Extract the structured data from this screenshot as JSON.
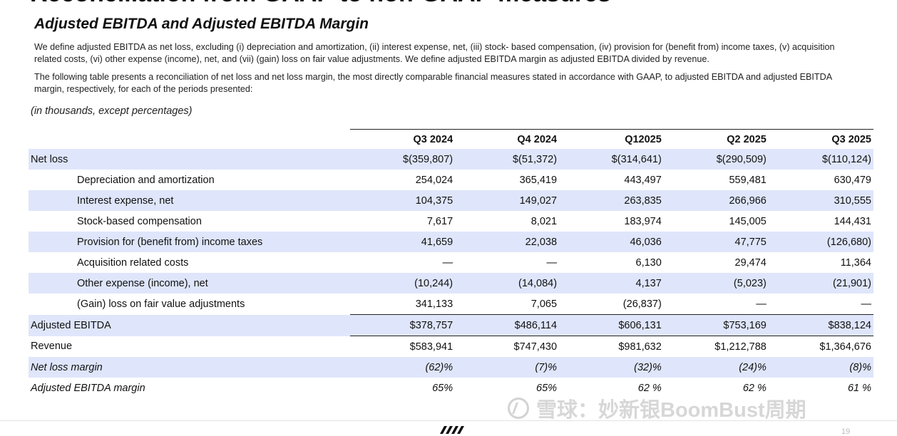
{
  "page": {
    "heading": "Reconciliation from GAAP to non-GAAP measures",
    "section_title": "Adjusted EBITDA and Adjusted EBITDA Margin",
    "paragraph_1": "We define adjusted EBITDA as net loss, excluding (i) depreciation and amortization, (ii) interest expense, net, (iii) stock- based compensation, (iv) provision for (benefit from) income taxes, (v) acquisition related costs, (vi) other expense (income), net, and (vii) (gain) loss on fair value adjustments. We define adjusted EBITDA margin as adjusted EBITDA divided by revenue.",
    "paragraph_2": "The following table presents a reconciliation of net loss and net loss margin, the most directly comparable financial measures stated in accordance with GAAP, to adjusted EBITDA and adjusted EBITDA margin, respectively, for each of the periods presented:",
    "units_note": "(in thousands, except percentages)",
    "page_number": "19"
  },
  "table": {
    "columns": [
      "Q3 2024",
      "Q4 2024",
      "Q12025",
      "Q2 2025",
      "Q3 2025"
    ],
    "rows": [
      {
        "label": "Net loss",
        "values": [
          "$(359,807)",
          "$(51,372)",
          "$(314,641)",
          "$(290,509)",
          "$(110,124)"
        ]
      },
      {
        "label": "Depreciation and amortization",
        "values": [
          "254,024",
          "365,419",
          "443,497",
          "559,481",
          "630,479"
        ]
      },
      {
        "label": "Interest expense, net",
        "values": [
          "104,375",
          "149,027",
          "263,835",
          "266,966",
          "310,555"
        ]
      },
      {
        "label": "Stock-based compensation",
        "values": [
          "7,617",
          "8,021",
          "183,974",
          "145,005",
          "144,431"
        ]
      },
      {
        "label": "Provision for (benefit from) income taxes",
        "values": [
          "41,659",
          "22,038",
          "46,036",
          "47,775",
          "(126,680)"
        ]
      },
      {
        "label": "Acquisition related costs",
        "values": [
          "—",
          "—",
          "6,130",
          "29,474",
          "11,364"
        ]
      },
      {
        "label": "Other expense (income), net",
        "values": [
          "(10,244)",
          "(14,084)",
          "4,137",
          "(5,023)",
          "(21,901)"
        ]
      },
      {
        "label": "(Gain) loss on fair value adjustments",
        "values": [
          "341,133",
          "7,065",
          "(26,837)",
          "—",
          "—"
        ]
      },
      {
        "label": "Adjusted EBITDA",
        "values": [
          "$378,757",
          "$486,114",
          "$606,131",
          "$753,169",
          "$838,124"
        ]
      },
      {
        "label": "Revenue",
        "values": [
          "$583,941",
          "$747,430",
          "$981,632",
          "$1,212,788",
          "$1,364,676"
        ]
      },
      {
        "label": "Net loss margin",
        "values": [
          "(62)%",
          "(7)%",
          "(32)%",
          "(24)%",
          "(8)%"
        ]
      },
      {
        "label": "Adjusted EBITDA margin",
        "values": [
          "65%",
          "65%",
          "62 %",
          "62 %",
          "61 %"
        ]
      }
    ]
  },
  "watermark": {
    "text": "雪球：妙新银BoomBust周期"
  },
  "colors": {
    "row_shade": "#dfe6fb",
    "rule": "#222222"
  }
}
